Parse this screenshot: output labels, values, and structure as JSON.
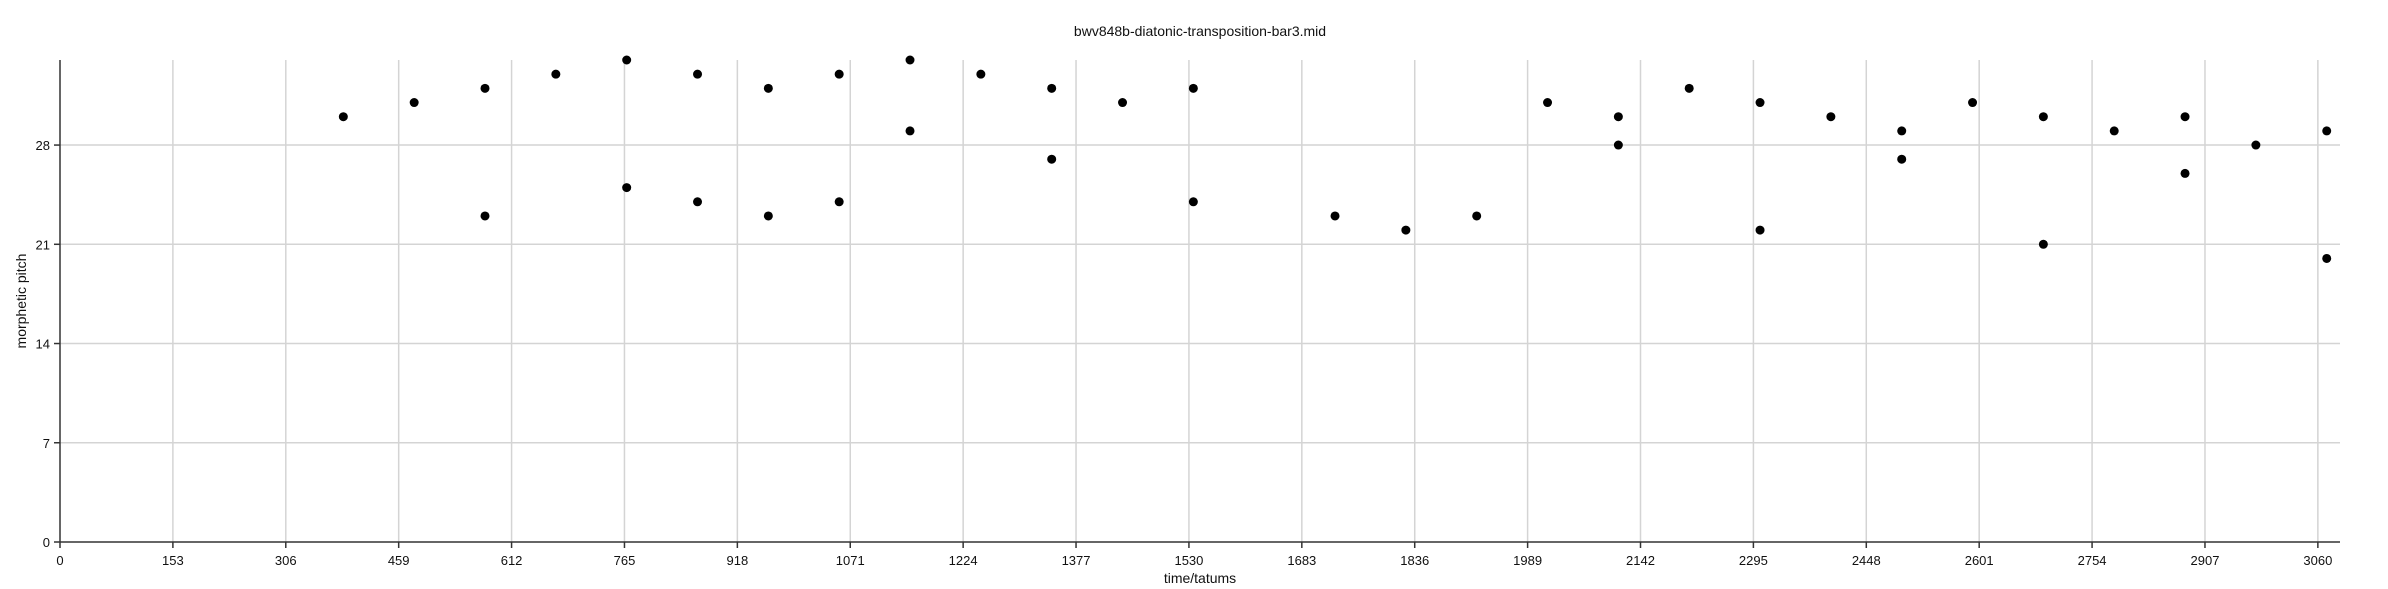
{
  "chart_data": {
    "type": "scatter",
    "title": "bwv848b-diatonic-transposition-bar3.mid",
    "xlabel": "time/tatums",
    "ylabel": "morphetic pitch",
    "xlim": [
      0,
      3090
    ],
    "ylim": [
      0,
      34
    ],
    "xticks": [
      0,
      153,
      306,
      459,
      612,
      765,
      918,
      1071,
      1224,
      1377,
      1530,
      1683,
      1836,
      1989,
      2142,
      2295,
      2448,
      2601,
      2754,
      2907,
      3060
    ],
    "yticks": [
      0,
      7,
      14,
      21,
      28
    ],
    "grid": true,
    "marker_color": "#000000",
    "points": [
      {
        "x": 384,
        "y": 30
      },
      {
        "x": 480,
        "y": 31
      },
      {
        "x": 576,
        "y": 32
      },
      {
        "x": 576,
        "y": 23
      },
      {
        "x": 672,
        "y": 33
      },
      {
        "x": 768,
        "y": 34
      },
      {
        "x": 768,
        "y": 25
      },
      {
        "x": 864,
        "y": 33
      },
      {
        "x": 864,
        "y": 24
      },
      {
        "x": 960,
        "y": 32
      },
      {
        "x": 960,
        "y": 23
      },
      {
        "x": 1056,
        "y": 33
      },
      {
        "x": 1056,
        "y": 24
      },
      {
        "x": 1152,
        "y": 34
      },
      {
        "x": 1152,
        "y": 29
      },
      {
        "x": 1248,
        "y": 33
      },
      {
        "x": 1344,
        "y": 32
      },
      {
        "x": 1344,
        "y": 27
      },
      {
        "x": 1440,
        "y": 31
      },
      {
        "x": 1536,
        "y": 32
      },
      {
        "x": 1536,
        "y": 24
      },
      {
        "x": 1728,
        "y": 23
      },
      {
        "x": 1824,
        "y": 22
      },
      {
        "x": 1920,
        "y": 23
      },
      {
        "x": 2016,
        "y": 31
      },
      {
        "x": 2112,
        "y": 30
      },
      {
        "x": 2112,
        "y": 28
      },
      {
        "x": 2208,
        "y": 32
      },
      {
        "x": 2304,
        "y": 31
      },
      {
        "x": 2304,
        "y": 22
      },
      {
        "x": 2400,
        "y": 30
      },
      {
        "x": 2496,
        "y": 29
      },
      {
        "x": 2496,
        "y": 27
      },
      {
        "x": 2592,
        "y": 31
      },
      {
        "x": 2688,
        "y": 30
      },
      {
        "x": 2688,
        "y": 21
      },
      {
        "x": 2784,
        "y": 29
      },
      {
        "x": 2880,
        "y": 30
      },
      {
        "x": 2880,
        "y": 26
      },
      {
        "x": 2976,
        "y": 28
      },
      {
        "x": 3072,
        "y": 29
      },
      {
        "x": 3072,
        "y": 20
      }
    ]
  }
}
